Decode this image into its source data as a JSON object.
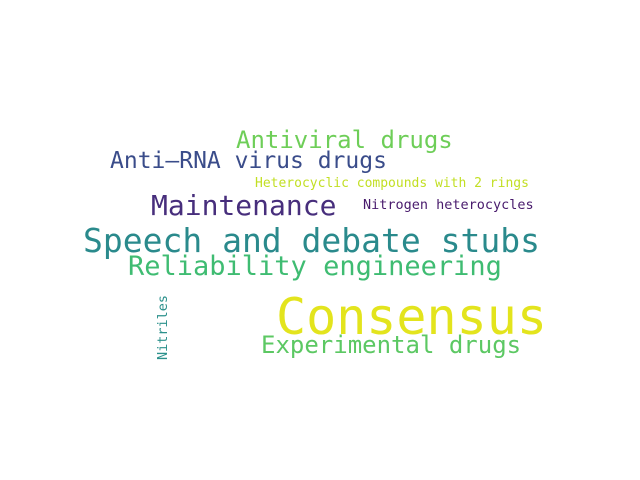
{
  "words": {
    "consensus": {
      "text": "Consensus",
      "color": "#e3e41d"
    },
    "speech_and_debate_stubs": {
      "text": "Speech and debate stubs",
      "color": "#2a8a8c"
    },
    "reliability_engineering": {
      "text": "Reliability engineering",
      "color": "#3fbc72"
    },
    "maintenance": {
      "text": "Maintenance",
      "color": "#472e7c"
    },
    "anti_rna_virus_drugs": {
      "text": "Anti–RNA virus drugs",
      "color": "#3a4c8a"
    },
    "antiviral_drugs": {
      "text": "Antiviral drugs",
      "color": "#6ece58"
    },
    "experimental_drugs": {
      "text": "Experimental drugs",
      "color": "#5cc863"
    },
    "heterocyclic_compounds": {
      "text": "Heterocyclic compounds with 2 rings",
      "color": "#c2df23"
    },
    "nitrogen_heterocycles": {
      "text": "Nitrogen heterocycles",
      "color": "#481a6c"
    },
    "nitriles": {
      "text": "Nitriles",
      "color": "#2c918c"
    }
  }
}
